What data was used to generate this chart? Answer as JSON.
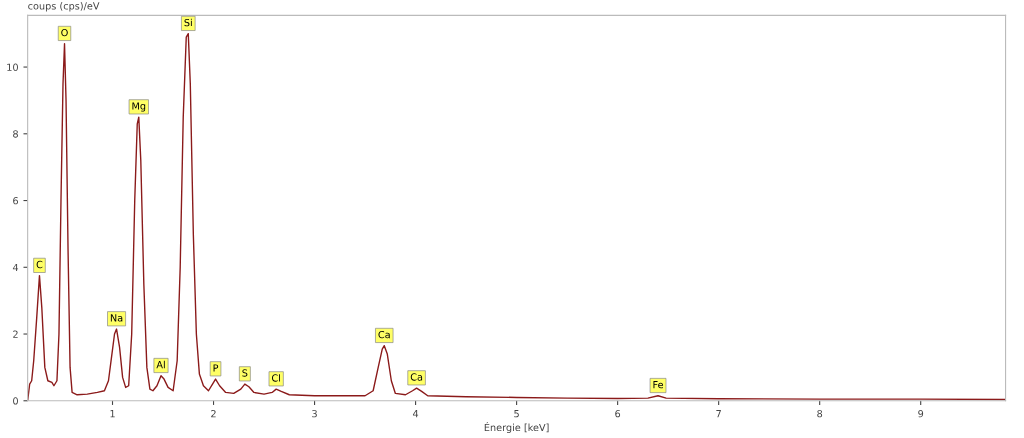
{
  "chart_data": {
    "type": "line",
    "ylabel": "coups (cps)/eV",
    "xlabel": "Énergie [keV]",
    "xlim": [
      0.16,
      9.84
    ],
    "ylim": [
      0,
      11.55
    ],
    "xticks": [
      1,
      2,
      3,
      4,
      5,
      6,
      7,
      8,
      9
    ],
    "yticks": [
      0,
      2,
      4,
      6,
      8,
      10
    ],
    "grid": false,
    "legend": false,
    "marker": "none",
    "line_style": "solid",
    "x": [
      0.16,
      0.18,
      0.2,
      0.22,
      0.25,
      0.277,
      0.3,
      0.33,
      0.36,
      0.4,
      0.42,
      0.45,
      0.47,
      0.49,
      0.51,
      0.525,
      0.54,
      0.56,
      0.58,
      0.6,
      0.65,
      0.75,
      0.85,
      0.92,
      0.96,
      0.99,
      1.02,
      1.04,
      1.07,
      1.1,
      1.13,
      1.16,
      1.19,
      1.22,
      1.245,
      1.26,
      1.28,
      1.31,
      1.34,
      1.37,
      1.4,
      1.44,
      1.48,
      1.51,
      1.55,
      1.6,
      1.64,
      1.67,
      1.7,
      1.73,
      1.75,
      1.77,
      1.8,
      1.83,
      1.86,
      1.9,
      1.95,
      1.99,
      2.02,
      2.06,
      2.12,
      2.2,
      2.27,
      2.31,
      2.35,
      2.4,
      2.5,
      2.58,
      2.62,
      2.67,
      2.75,
      3.0,
      3.3,
      3.5,
      3.58,
      3.63,
      3.67,
      3.69,
      3.72,
      3.76,
      3.8,
      3.9,
      3.97,
      4.01,
      4.06,
      4.12,
      4.5,
      5.0,
      5.5,
      6.0,
      6.3,
      6.4,
      6.48,
      7.0,
      8.0,
      9.0,
      9.84
    ],
    "series": [
      {
        "color": "#8b1a1a",
        "values": [
          0.0,
          0.5,
          0.6,
          1.2,
          2.5,
          3.75,
          2.8,
          1.0,
          0.6,
          0.55,
          0.45,
          0.6,
          2.0,
          6.0,
          9.5,
          10.7,
          9.0,
          4.5,
          1.0,
          0.25,
          0.18,
          0.2,
          0.25,
          0.3,
          0.6,
          1.3,
          2.0,
          2.15,
          1.6,
          0.7,
          0.4,
          0.45,
          2.0,
          6.0,
          8.3,
          8.5,
          7.2,
          3.5,
          1.0,
          0.35,
          0.3,
          0.45,
          0.75,
          0.65,
          0.4,
          0.3,
          1.2,
          4.0,
          8.5,
          10.9,
          11.0,
          9.5,
          5.0,
          2.0,
          0.8,
          0.45,
          0.3,
          0.5,
          0.65,
          0.45,
          0.25,
          0.22,
          0.35,
          0.5,
          0.42,
          0.25,
          0.2,
          0.25,
          0.35,
          0.28,
          0.18,
          0.15,
          0.15,
          0.15,
          0.3,
          1.0,
          1.55,
          1.65,
          1.4,
          0.6,
          0.22,
          0.18,
          0.3,
          0.38,
          0.28,
          0.15,
          0.12,
          0.1,
          0.08,
          0.07,
          0.08,
          0.15,
          0.08,
          0.06,
          0.05,
          0.05,
          0.04
        ]
      }
    ],
    "annotations": [
      {
        "text": "C",
        "x": 0.277,
        "y": 3.75
      },
      {
        "text": "O",
        "x": 0.525,
        "y": 10.7
      },
      {
        "text": "Na",
        "x": 1.04,
        "y": 2.15
      },
      {
        "text": "Mg",
        "x": 1.26,
        "y": 8.5
      },
      {
        "text": "Al",
        "x": 1.48,
        "y": 0.75
      },
      {
        "text": "Si",
        "x": 1.75,
        "y": 11.0
      },
      {
        "text": "P",
        "x": 2.02,
        "y": 0.65
      },
      {
        "text": "S",
        "x": 2.31,
        "y": 0.5
      },
      {
        "text": "Cl",
        "x": 2.62,
        "y": 0.35
      },
      {
        "text": "Ca",
        "x": 3.69,
        "y": 1.65
      },
      {
        "text": "Ca",
        "x": 4.01,
        "y": 0.38
      },
      {
        "text": "Fe",
        "x": 6.4,
        "y": 0.15
      }
    ]
  }
}
